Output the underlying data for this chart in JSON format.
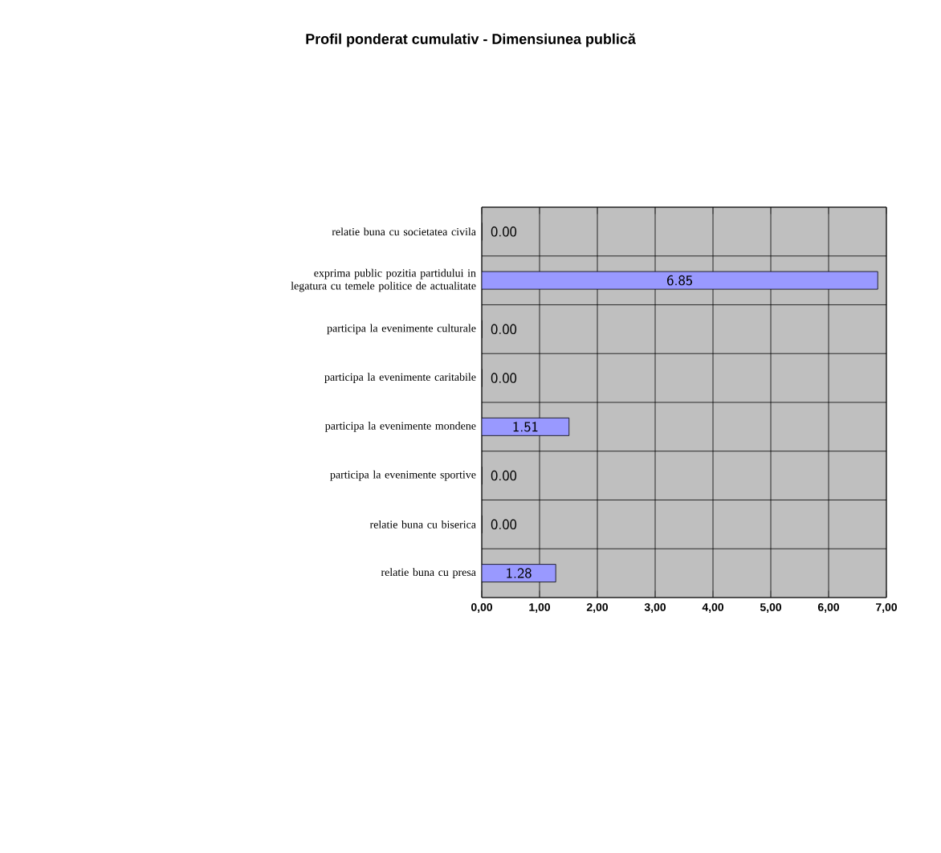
{
  "chart_data": {
    "type": "bar",
    "orientation": "horizontal",
    "title": "Profil ponderat cumulativ - Dimensiunea publică",
    "categories": [
      "relatie buna cu societatea civila",
      "exprima public pozitia partidului in legatura cu temele politice de actualitate",
      "participa la evenimente culturale",
      "participa la evenimente caritabile",
      "participa la evenimente mondene",
      "participa la evenimente sportive",
      "relatie buna cu biserica",
      "relatie buna cu presa"
    ],
    "values": [
      0,
      6.85,
      0,
      0,
      1.51,
      0,
      0,
      1.28
    ],
    "value_labels": [
      "0.00",
      "6.85",
      "0.00",
      "0.00",
      "1.51",
      "0.00",
      "0.00",
      "1.28"
    ],
    "color": "#9999ff",
    "xlim": [
      0,
      7
    ],
    "xticks": [
      {
        "value": 0,
        "label": "0,00"
      },
      {
        "value": 1,
        "label": "1,00"
      },
      {
        "value": 2,
        "label": "2,00"
      },
      {
        "value": 3,
        "label": "3,00"
      },
      {
        "value": 4,
        "label": "4,00"
      },
      {
        "value": 5,
        "label": "5,00"
      },
      {
        "value": 6,
        "label": "6,00"
      },
      {
        "value": 7,
        "label": "7,00"
      }
    ],
    "grid": true,
    "legend": false
  }
}
